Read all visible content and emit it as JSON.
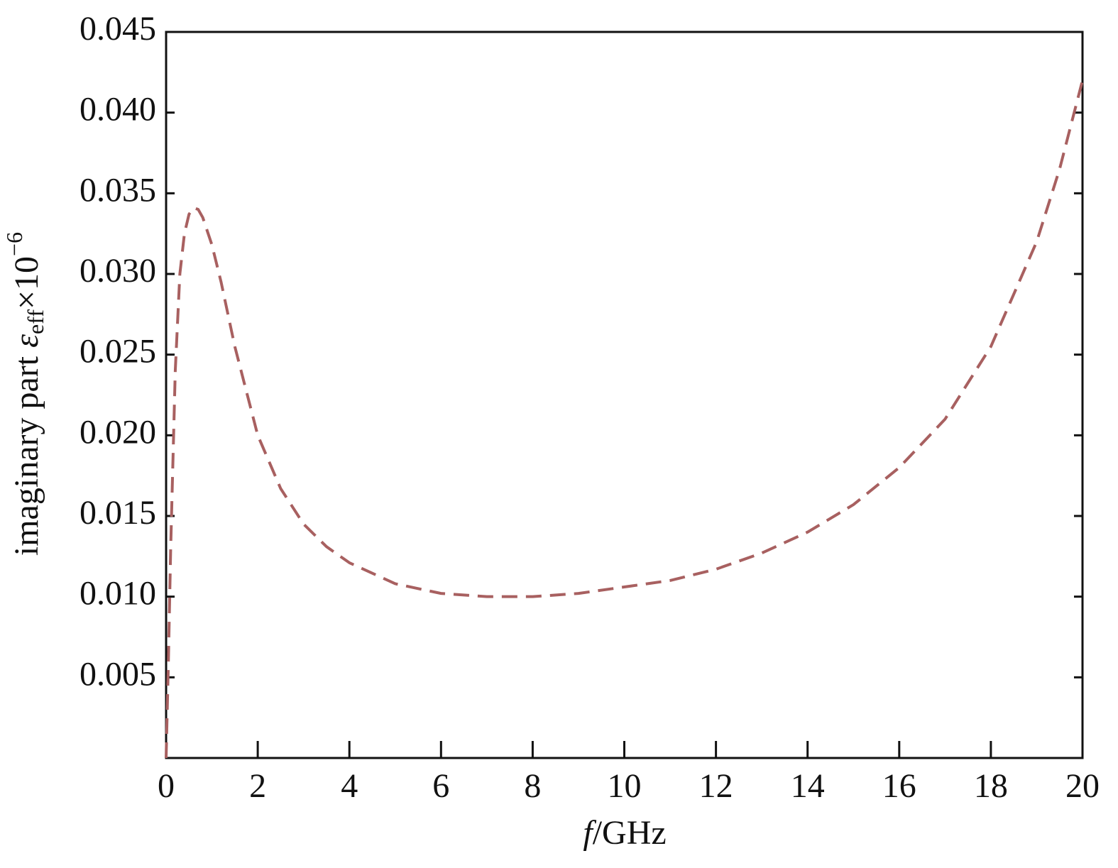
{
  "chart_data": {
    "type": "line",
    "xlabel": {
      "italic": "f",
      "rest": "/GHz"
    },
    "ylabel": {
      "text": "imaginary part ",
      "symbol": "ε",
      "subscript": "eff",
      "suffix": "×10",
      "superscript": "−6"
    },
    "x": [
      0,
      0.05,
      0.1,
      0.2,
      0.3,
      0.4,
      0.5,
      0.6,
      0.7,
      0.8,
      1.0,
      1.2,
      1.5,
      2,
      2.5,
      3,
      3.5,
      4,
      5,
      6,
      7,
      8,
      9,
      10,
      11,
      12,
      13,
      14,
      15,
      16,
      17,
      18,
      19,
      19.5,
      20
    ],
    "series": [
      {
        "name": "imaginary part",
        "color": "#a86060",
        "dashed": true,
        "values": [
          0,
          0.006,
          0.013,
          0.024,
          0.03,
          0.0325,
          0.0337,
          0.0341,
          0.034,
          0.0335,
          0.0318,
          0.0295,
          0.0255,
          0.02,
          0.0167,
          0.0145,
          0.0131,
          0.0121,
          0.0108,
          0.0102,
          0.01,
          0.01,
          0.0102,
          0.0106,
          0.011,
          0.0117,
          0.0127,
          0.014,
          0.0157,
          0.018,
          0.021,
          0.0255,
          0.032,
          0.0365,
          0.042
        ]
      }
    ],
    "xlim": [
      0,
      20
    ],
    "xticks": [
      0,
      2,
      4,
      6,
      8,
      10,
      12,
      14,
      16,
      18,
      20
    ],
    "ylim": [
      0,
      0.045
    ],
    "yticks": [
      0.005,
      {
        "value": 0.01,
        "label": "0.010"
      },
      0.015,
      {
        "value": 0.02,
        "label": "0.020"
      },
      0.025,
      {
        "value": 0.03,
        "label": "0.030"
      },
      0.035,
      {
        "value": 0.04,
        "label": "0.040"
      },
      0.045
    ],
    "grid": false
  }
}
